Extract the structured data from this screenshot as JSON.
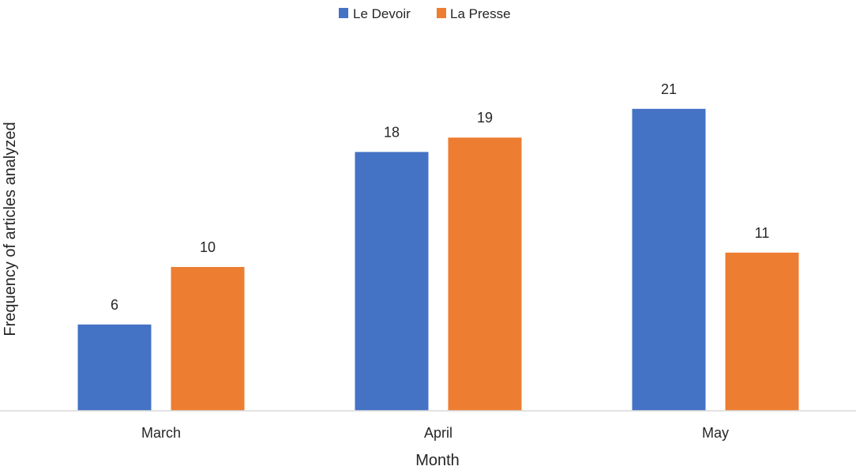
{
  "chart_data": {
    "type": "bar",
    "categories": [
      "March",
      "April",
      "May"
    ],
    "series": [
      {
        "name": "Le Devoir",
        "values": [
          6,
          18,
          21
        ],
        "color": "#4472C4"
      },
      {
        "name": "La Presse",
        "values": [
          10,
          19,
          11
        ],
        "color": "#ED7D31"
      }
    ],
    "title": "",
    "xlabel": "Month",
    "ylabel": "Frequency of articles analyzed",
    "ylim": [
      0,
      21
    ],
    "grid": false,
    "legend_position": "top-center",
    "data_labels": true
  }
}
